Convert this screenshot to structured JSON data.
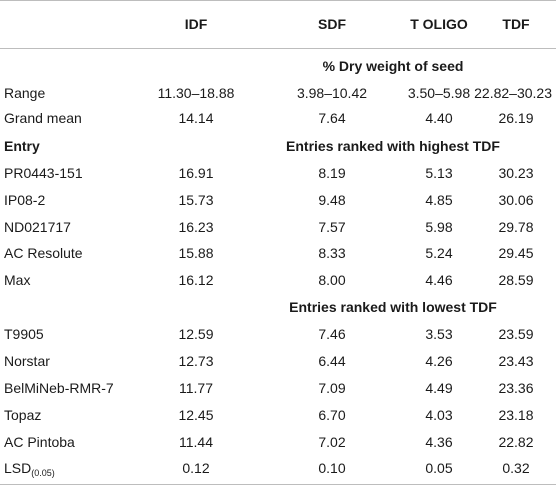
{
  "header": {
    "col0": "",
    "col1": "IDF",
    "col2": "SDF",
    "col3": "T OLIGO",
    "col4": "TDF"
  },
  "unit_row": "% Dry weight of seed",
  "summary_rows": [
    {
      "label": "Range",
      "idf": "11.30–18.88",
      "sdf": "3.98–10.42",
      "toligo": "3.50–5.98",
      "tdf": "22.82–30.23"
    },
    {
      "label": "Grand mean",
      "idf": "14.14",
      "sdf": "7.64",
      "toligo": "4.40",
      "tdf": "26.19"
    }
  ],
  "entry_label": "Entry",
  "highest_heading": "Entries ranked with highest TDF",
  "highest_rows": [
    {
      "label": "PR0443-151",
      "idf": "16.91",
      "sdf": "8.19",
      "toligo": "5.13",
      "tdf": "30.23"
    },
    {
      "label": "IP08-2",
      "idf": "15.73",
      "sdf": "9.48",
      "toligo": "4.85",
      "tdf": "30.06"
    },
    {
      "label": "ND021717",
      "idf": "16.23",
      "sdf": "7.57",
      "toligo": "5.98",
      "tdf": "29.78"
    },
    {
      "label": "AC Resolute",
      "idf": "15.88",
      "sdf": "8.33",
      "toligo": "5.24",
      "tdf": "29.45"
    },
    {
      "label": "Max",
      "idf": "16.12",
      "sdf": "8.00",
      "toligo": "4.46",
      "tdf": "28.59"
    }
  ],
  "lowest_heading": "Entries ranked with lowest TDF",
  "lowest_rows": [
    {
      "label": "T9905",
      "idf": "12.59",
      "sdf": "7.46",
      "toligo": "3.53",
      "tdf": "23.59"
    },
    {
      "label": "Norstar",
      "idf": "12.73",
      "sdf": "6.44",
      "toligo": "4.26",
      "tdf": "23.43"
    },
    {
      "label": "BelMiNeb-RMR-7",
      "idf": "11.77",
      "sdf": "7.09",
      "toligo": "4.49",
      "tdf": "23.36"
    },
    {
      "label": "Topaz",
      "idf": "12.45",
      "sdf": "6.70",
      "toligo": "4.03",
      "tdf": "23.18"
    },
    {
      "label": "AC Pintoba",
      "idf": "11.44",
      "sdf": "7.02",
      "toligo": "4.36",
      "tdf": "22.82"
    }
  ],
  "lsd_row": {
    "label": "LSD",
    "label_sub": "(0.05)",
    "idf": "0.12",
    "sdf": "0.10",
    "toligo": "0.05",
    "tdf": "0.32"
  },
  "colors": {
    "rule": "#bdbdbd",
    "text": "#1a1a1a"
  }
}
